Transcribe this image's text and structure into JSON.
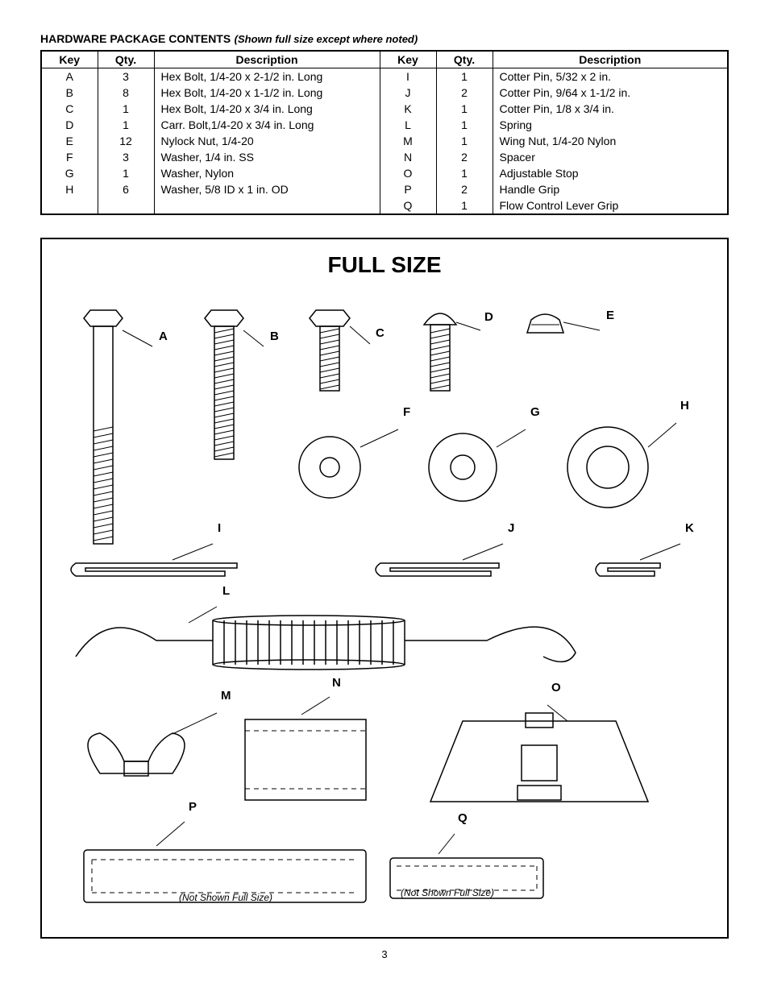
{
  "title": {
    "main": "HARDWARE PACKAGE CONTENTS",
    "note": "(Shown full size except where noted)"
  },
  "table": {
    "headers": {
      "key": "Key",
      "qty": "Qty.",
      "desc": "Description"
    },
    "left": [
      {
        "key": "A",
        "qty": "3",
        "desc": "Hex Bolt, 1/4-20 x 2-1/2 in. Long"
      },
      {
        "key": "B",
        "qty": "8",
        "desc": "Hex Bolt, 1/4-20 x 1-1/2 in. Long"
      },
      {
        "key": "C",
        "qty": "1",
        "desc": "Hex Bolt, 1/4-20 x 3/4 in. Long"
      },
      {
        "key": "D",
        "qty": "1",
        "desc": "Carr. Bolt,1/4-20 x 3/4 in. Long"
      },
      {
        "key": "E",
        "qty": "12",
        "desc": "Nylock Nut, 1/4-20"
      },
      {
        "key": "F",
        "qty": "3",
        "desc": "Washer, 1/4 in. SS"
      },
      {
        "key": "G",
        "qty": "1",
        "desc": "Washer, Nylon"
      },
      {
        "key": "H",
        "qty": "6",
        "desc": "Washer, 5/8 ID x 1 in. OD"
      },
      {
        "key": "",
        "qty": "",
        "desc": ""
      }
    ],
    "right": [
      {
        "key": "I",
        "qty": "1",
        "desc": "Cotter Pin, 5/32 x 2 in."
      },
      {
        "key": "J",
        "qty": "2",
        "desc": "Cotter Pin, 9/64 x 1-1/2 in."
      },
      {
        "key": "K",
        "qty": "1",
        "desc": "Cotter Pin, 1/8 x 3/4 in."
      },
      {
        "key": "L",
        "qty": "1",
        "desc": "Spring"
      },
      {
        "key": "M",
        "qty": "1",
        "desc": "Wing Nut, 1/4-20 Nylon"
      },
      {
        "key": "N",
        "qty": "2",
        "desc": "Spacer"
      },
      {
        "key": "O",
        "qty": "1",
        "desc": "Adjustable Stop"
      },
      {
        "key": "P",
        "qty": "2",
        "desc": "Handle Grip"
      },
      {
        "key": "Q",
        "qty": "1",
        "desc": "Flow Control Lever Grip"
      }
    ]
  },
  "diagram": {
    "title": "FULL SIZE",
    "labels": {
      "A": "A",
      "B": "B",
      "C": "C",
      "D": "D",
      "E": "E",
      "F": "F",
      "G": "G",
      "H": "H",
      "I": "I",
      "J": "J",
      "K": "K",
      "L": "L",
      "M": "M",
      "N": "N",
      "O": "O",
      "P": "P",
      "Q": "Q"
    },
    "not_full_size": "(Not Shown Full Size)"
  },
  "page_number": "3"
}
